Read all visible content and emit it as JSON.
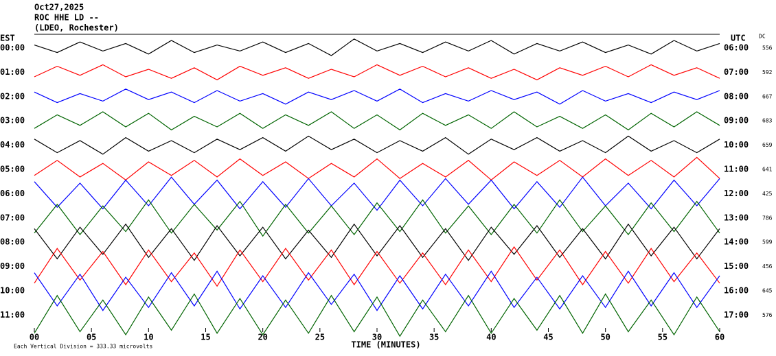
{
  "chart_data": {
    "type": "helicorder",
    "title_lines": [
      "Oct27,2025",
      "ROC HHE LD --",
      "(LDEO, Rochester)"
    ],
    "left_axis_label": "EST",
    "right_axis_label": "UTC",
    "dc_label": "DC",
    "xlabel": "TIME (MINUTES)",
    "footer": "Each Vertical Division = 333.33 microvolts",
    "xlim": [
      0,
      60
    ],
    "xticks": [
      {
        "value": 0,
        "label": "00"
      },
      {
        "value": 5,
        "label": "05"
      },
      10,
      15,
      20,
      25,
      30,
      35,
      40,
      45,
      50,
      55,
      60
    ],
    "x": [
      0,
      2,
      4,
      6,
      8,
      10,
      12,
      14,
      16,
      18,
      20,
      22,
      24,
      26,
      28,
      30,
      32,
      34,
      36,
      38,
      40,
      42,
      44,
      46,
      48,
      50,
      52,
      54,
      56,
      58,
      60
    ],
    "series": [
      {
        "name": "00:00",
        "utc": "06:00",
        "dc": 556,
        "color": "#000000",
        "values": [
          0.2,
          -0.3,
          0.4,
          -0.2,
          0.3,
          -0.4,
          0.5,
          -0.3,
          0.2,
          -0.2,
          0.4,
          -0.3,
          0.3,
          -0.5,
          0.6,
          -0.2,
          0.3,
          -0.3,
          0.4,
          -0.2,
          0.5,
          -0.4,
          0.3,
          -0.2,
          0.4,
          -0.3,
          0.2,
          -0.4,
          0.5,
          -0.2,
          0.3
        ]
      },
      {
        "name": "01:00",
        "utc": "07:00",
        "dc": 592,
        "color": "#ff0000",
        "values": [
          -0.3,
          0.4,
          -0.2,
          0.5,
          -0.3,
          0.2,
          -0.4,
          0.3,
          -0.5,
          0.4,
          -0.2,
          0.3,
          -0.4,
          0.2,
          -0.3,
          0.5,
          -0.2,
          0.4,
          -0.3,
          0.3,
          -0.4,
          0.2,
          -0.5,
          0.3,
          -0.2,
          0.4,
          -0.3,
          0.5,
          -0.2,
          0.3,
          -0.4
        ]
      },
      {
        "name": "02:00",
        "utc": "08:00",
        "dc": 667,
        "color": "#0000ff",
        "values": [
          0.3,
          -0.4,
          0.2,
          -0.3,
          0.5,
          -0.2,
          0.3,
          -0.4,
          0.4,
          -0.3,
          0.2,
          -0.5,
          0.3,
          -0.2,
          0.4,
          -0.3,
          0.5,
          -0.4,
          0.2,
          -0.3,
          0.4,
          -0.2,
          0.3,
          -0.5,
          0.4,
          -0.3,
          0.2,
          -0.4,
          0.3,
          -0.2,
          0.4
        ]
      },
      {
        "name": "03:00",
        "utc": "09:00",
        "dc": 683,
        "color": "#006400",
        "values": [
          -0.5,
          0.4,
          -0.3,
          0.6,
          -0.4,
          0.5,
          -0.6,
          0.3,
          -0.4,
          0.5,
          -0.5,
          0.4,
          -0.3,
          0.6,
          -0.5,
          0.4,
          -0.6,
          0.5,
          -0.3,
          0.4,
          -0.5,
          0.6,
          -0.4,
          0.3,
          -0.5,
          0.4,
          -0.6,
          0.5,
          -0.4,
          0.6,
          -0.3
        ]
      },
      {
        "name": "04:00",
        "utc": "10:00",
        "dc": 659,
        "color": "#000000",
        "values": [
          0.4,
          -0.5,
          0.3,
          -0.6,
          0.5,
          -0.4,
          0.3,
          -0.5,
          0.4,
          -0.3,
          0.5,
          -0.4,
          0.6,
          -0.3,
          0.4,
          -0.5,
          0.3,
          -0.4,
          0.5,
          -0.6,
          0.4,
          -0.3,
          0.5,
          -0.4,
          0.3,
          -0.5,
          0.6,
          -0.4,
          0.3,
          -0.5,
          0.4
        ]
      },
      {
        "name": "05:00",
        "utc": "11:00",
        "dc": 641,
        "color": "#ff0000",
        "values": [
          -0.4,
          0.6,
          -0.5,
          0.4,
          -0.7,
          0.5,
          -0.4,
          0.6,
          -0.5,
          0.7,
          -0.4,
          0.5,
          -0.6,
          0.4,
          -0.5,
          0.7,
          -0.6,
          0.4,
          -0.5,
          0.6,
          -0.7,
          0.5,
          -0.4,
          0.6,
          -0.5,
          0.7,
          -0.4,
          0.6,
          -0.5,
          0.8,
          -0.6
        ]
      },
      {
        "name": "06:00",
        "utc": "12:00",
        "dc": 425,
        "color": "#0000ff",
        "values": [
          0.8,
          -0.9,
          0.7,
          -1.0,
          0.9,
          -0.8,
          1.1,
          -0.7,
          0.9,
          -1.0,
          0.8,
          -0.9,
          1.0,
          -0.8,
          0.7,
          -1.1,
          0.9,
          -0.8,
          1.0,
          -0.7,
          0.9,
          -1.0,
          0.8,
          -0.9,
          1.1,
          -0.8,
          0.7,
          -1.0,
          0.9,
          -0.8,
          1.0
        ]
      },
      {
        "name": "07:00",
        "utc": "13:00",
        "dc": 786,
        "color": "#006400",
        "values": [
          -1.0,
          0.9,
          -1.1,
          0.8,
          -0.9,
          1.2,
          -1.0,
          0.9,
          -0.8,
          1.1,
          -1.2,
          0.9,
          -1.0,
          0.8,
          -1.1,
          1.0,
          -0.9,
          1.2,
          -1.0,
          0.8,
          -1.1,
          0.9,
          -1.0,
          1.2,
          -0.9,
          0.8,
          -1.1,
          1.0,
          -0.9,
          1.1,
          -1.0
        ]
      },
      {
        "name": "08:00",
        "utc": "14:00",
        "dc": 599,
        "color": "#000000",
        "values": [
          0.9,
          -1.1,
          1.0,
          -0.8,
          1.2,
          -1.0,
          0.9,
          -1.2,
          1.1,
          -0.9,
          1.0,
          -1.1,
          0.8,
          -1.0,
          1.2,
          -0.9,
          1.1,
          -1.0,
          0.9,
          -1.2,
          1.0,
          -0.8,
          1.1,
          -1.0,
          0.9,
          -1.1,
          1.2,
          -0.9,
          1.0,
          -1.1,
          0.9
        ]
      },
      {
        "name": "09:00",
        "utc": "15:00",
        "dc": 456,
        "color": "#ff0000",
        "values": [
          -1.1,
          1.2,
          -0.9,
          1.0,
          -1.2,
          1.1,
          -1.0,
          0.9,
          -1.3,
          1.1,
          -1.0,
          1.2,
          -0.9,
          1.1,
          -1.2,
          1.0,
          -1.1,
          0.9,
          -1.2,
          1.1,
          -1.0,
          1.3,
          -0.9,
          1.1,
          -1.2,
          1.0,
          -1.1,
          1.2,
          -1.0,
          0.9,
          -1.1
        ]
      },
      {
        "name": "10:00",
        "utc": "16:00",
        "dc": 645,
        "color": "#0000ff",
        "values": [
          1.2,
          -1.0,
          1.1,
          -1.3,
          0.9,
          -1.1,
          1.2,
          -1.0,
          1.3,
          -1.2,
          1.0,
          -1.1,
          1.2,
          -0.9,
          1.1,
          -1.3,
          1.0,
          -1.2,
          1.1,
          -1.0,
          1.3,
          -1.1,
          0.9,
          -1.2,
          1.0,
          -1.1,
          1.3,
          -1.0,
          1.2,
          -1.1,
          1.0
        ]
      },
      {
        "name": "11:00",
        "utc": "17:00",
        "dc": 576,
        "color": "#006400",
        "values": [
          -1.2,
          1.3,
          -1.1,
          1.0,
          -1.3,
          1.2,
          -1.0,
          1.4,
          -1.2,
          1.1,
          -1.3,
          1.0,
          -1.2,
          1.3,
          -1.1,
          1.2,
          -1.4,
          1.0,
          -1.1,
          1.3,
          -1.2,
          1.1,
          -1.0,
          1.3,
          -1.2,
          1.4,
          -1.1,
          1.0,
          -1.3,
          1.2,
          -1.1
        ]
      }
    ]
  }
}
